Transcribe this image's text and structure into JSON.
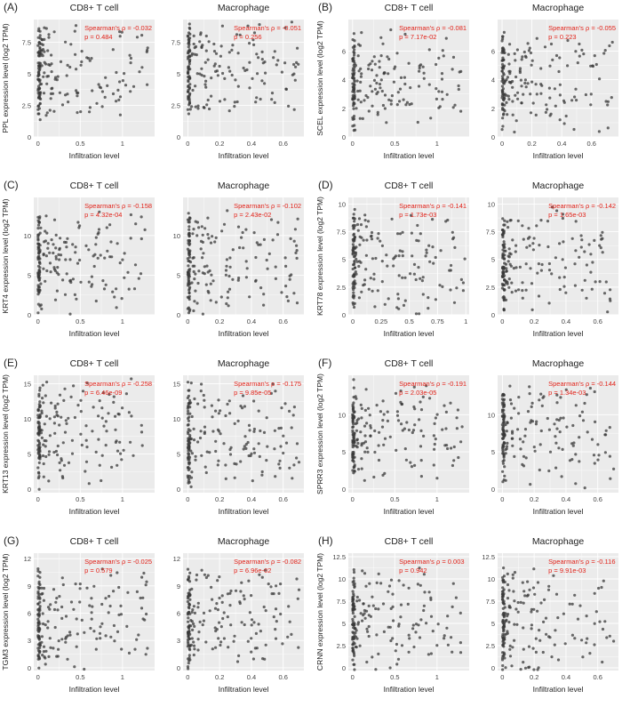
{
  "figure": {
    "colors": {
      "point": "#3a3a3a",
      "stats": "#e2231a",
      "panel_bg": "#ebebeb",
      "grid": "#ffffff",
      "text": "#222222"
    },
    "xlabel": "Infiltration level",
    "stat_rho_prefix": "Spearman's ρ = ",
    "stat_p_prefix": "p = "
  },
  "chart_data": [
    {
      "panel": "(A)",
      "gene": "PPL",
      "type": "scatter",
      "ylabel": "PPL expression level (log2 TPM)",
      "yticks": [
        0,
        2.5,
        5,
        7.5
      ],
      "ylim": [
        0,
        9.3
      ],
      "subplots": [
        {
          "title": "CD8+ T cell",
          "xticks": [
            0,
            0.5,
            1
          ],
          "xlim": [
            -0.05,
            1.38
          ],
          "rho": "-0.032",
          "p": "0.484",
          "n": 190,
          "xmax": 1.3,
          "ymean": 6.5
        },
        {
          "title": "Macrophage",
          "xticks": [
            0,
            0.2,
            0.4,
            0.6
          ],
          "xlim": [
            -0.03,
            0.73
          ],
          "rho": "-0.051",
          "p": "0.256",
          "n": 190,
          "xmax": 0.7,
          "ymean": 6.5
        }
      ]
    },
    {
      "panel": "(B)",
      "gene": "SCEL",
      "type": "scatter",
      "ylabel": "SCEL expression level (log2 TPM)",
      "yticks": [
        0,
        2,
        4,
        6
      ],
      "ylim": [
        0,
        8.2
      ],
      "subplots": [
        {
          "title": "CD8+ T cell",
          "xticks": [
            0,
            0.5,
            1
          ],
          "xlim": [
            -0.05,
            1.38
          ],
          "rho": "-0.081",
          "p": "7.17e-02",
          "n": 190,
          "xmax": 1.3,
          "ymean": 3.5
        },
        {
          "title": "Macrophage",
          "xticks": [
            0,
            0.2,
            0.4,
            0.6
          ],
          "xlim": [
            -0.03,
            0.78
          ],
          "rho": "-0.055",
          "p": "0.223",
          "n": 190,
          "xmax": 0.75,
          "ymean": 3.5
        }
      ]
    },
    {
      "panel": "(C)",
      "gene": "KRT4",
      "type": "scatter",
      "ylabel": "KRT4 expression level (log2 TPM)",
      "yticks": [
        0,
        5,
        10
      ],
      "ylim": [
        0,
        14.8
      ],
      "subplots": [
        {
          "title": "CD8+ T cell",
          "xticks": [
            0,
            0.5,
            1
          ],
          "xlim": [
            -0.05,
            1.38
          ],
          "rho": "-0.158",
          "p": "4.32e-04",
          "n": 190,
          "xmax": 1.3,
          "ymean": 5
        },
        {
          "title": "Macrophage",
          "xticks": [
            0,
            0.2,
            0.4,
            0.6
          ],
          "xlim": [
            -0.03,
            0.73
          ],
          "rho": "-0.102",
          "p": "2.43e-02",
          "n": 190,
          "xmax": 0.7,
          "ymean": 5
        }
      ]
    },
    {
      "panel": "(D)",
      "gene": "KRT78",
      "type": "scatter",
      "ylabel": "KRT78 expression level (log2 TPM)",
      "yticks": [
        0,
        2.5,
        5,
        7.5,
        10
      ],
      "ylim": [
        0,
        10.6
      ],
      "subplots": [
        {
          "title": "CD8+ T cell",
          "xticks": [
            0,
            0.25,
            0.5,
            0.75,
            1
          ],
          "xlim": [
            -0.04,
            1.03
          ],
          "rho": "-0.141",
          "p": "1.73e-03",
          "n": 190,
          "xmax": 1.0,
          "ymean": 4
        },
        {
          "title": "Macrophage",
          "xticks": [
            0,
            0.2,
            0.4,
            0.6
          ],
          "xlim": [
            -0.03,
            0.73
          ],
          "rho": "-0.142",
          "p": "1.65e-03",
          "n": 190,
          "xmax": 0.7,
          "ymean": 4
        }
      ]
    },
    {
      "panel": "(E)",
      "gene": "KRT13",
      "type": "scatter",
      "ylabel": "KRT13 expression level (log2 TPM)",
      "yticks": [
        0,
        5,
        10,
        15
      ],
      "ylim": [
        -0.5,
        16.2
      ],
      "subplots": [
        {
          "title": "CD8+ T cell",
          "xticks": [
            0,
            0.5,
            1
          ],
          "xlim": [
            -0.05,
            1.38
          ],
          "rho": "-0.258",
          "p": "6.46e-09",
          "n": 190,
          "xmax": 1.3,
          "ymean": 8
        },
        {
          "title": "Macrophage",
          "xticks": [
            0,
            0.2,
            0.4,
            0.6
          ],
          "xlim": [
            -0.03,
            0.73
          ],
          "rho": "-0.175",
          "p": "9.85e-05",
          "n": 190,
          "xmax": 0.7,
          "ymean": 8
        }
      ]
    },
    {
      "panel": "(F)",
      "gene": "SPRR3",
      "type": "scatter",
      "ylabel": "SPRR3 expression level (log2 TPM)",
      "yticks": [
        0,
        5,
        10
      ],
      "ylim": [
        -0.5,
        15.3
      ],
      "subplots": [
        {
          "title": "CD8+ T cell",
          "xticks": [
            0,
            0.5,
            1
          ],
          "xlim": [
            -0.05,
            1.38
          ],
          "rho": "-0.191",
          "p": "2.03e-05",
          "n": 190,
          "xmax": 1.3,
          "ymean": 7.5
        },
        {
          "title": "Macrophage",
          "xticks": [
            0,
            0.2,
            0.4,
            0.6
          ],
          "xlim": [
            -0.03,
            0.73
          ],
          "rho": "-0.144",
          "p": "1.34e-03",
          "n": 190,
          "xmax": 0.7,
          "ymean": 7.5
        }
      ]
    },
    {
      "panel": "(G)",
      "gene": "TGM3",
      "type": "scatter",
      "ylabel": "TGM3 expression level (log2 TPM)",
      "yticks": [
        0,
        3,
        6,
        9,
        12
      ],
      "ylim": [
        -0.3,
        12.6
      ],
      "subplots": [
        {
          "title": "CD8+ T cell",
          "xticks": [
            0,
            0.5,
            1
          ],
          "xlim": [
            -0.05,
            1.38
          ],
          "rho": "-0.025",
          "p": "0.579",
          "n": 190,
          "xmax": 1.3,
          "ymean": 4
        },
        {
          "title": "Macrophage",
          "xticks": [
            0,
            0.2,
            0.4,
            0.6
          ],
          "xlim": [
            -0.03,
            0.73
          ],
          "rho": "-0.082",
          "p": "6.96e-02",
          "n": 190,
          "xmax": 0.7,
          "ymean": 4
        }
      ]
    },
    {
      "panel": "(H)",
      "gene": "CRNN",
      "type": "scatter",
      "ylabel": "CRNN expression level (log2 TPM)",
      "yticks": [
        0,
        2.5,
        5,
        7.5,
        10,
        12.5
      ],
      "ylim": [
        -0.3,
        12.9
      ],
      "subplots": [
        {
          "title": "CD8+ T cell",
          "xticks": [
            0,
            0.5,
            1
          ],
          "xlim": [
            -0.05,
            1.38
          ],
          "rho": "0.003",
          "p": "0.942",
          "n": 190,
          "xmax": 1.3,
          "ymean": 4
        },
        {
          "title": "Macrophage",
          "xticks": [
            0,
            0.2,
            0.4,
            0.6
          ],
          "xlim": [
            -0.03,
            0.73
          ],
          "rho": "-0.116",
          "p": "9.91e-03",
          "n": 190,
          "xmax": 0.7,
          "ymean": 4
        }
      ]
    }
  ]
}
